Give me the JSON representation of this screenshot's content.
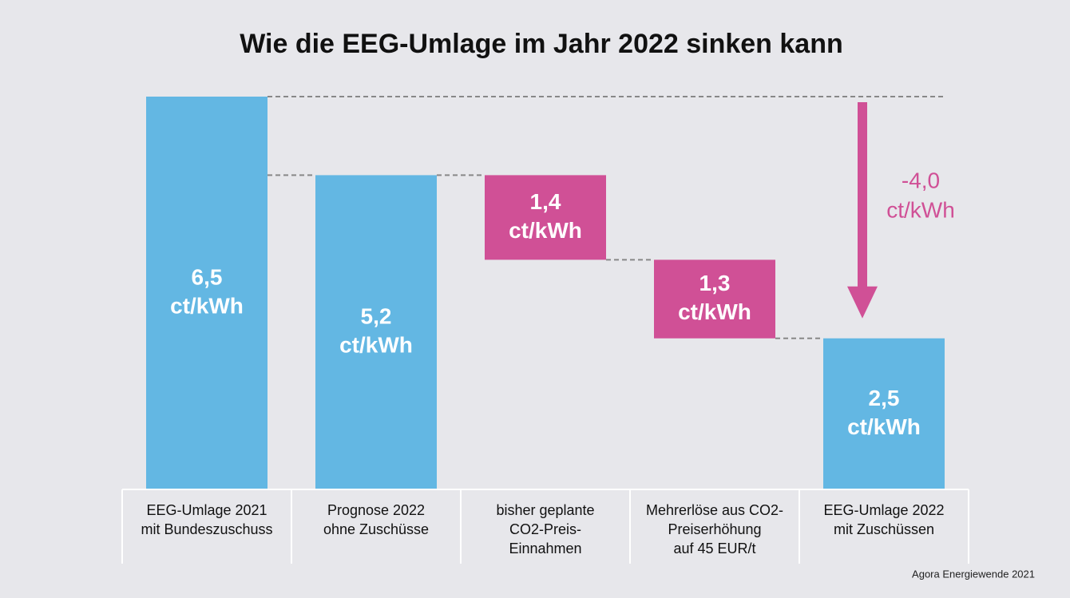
{
  "chart_data": {
    "type": "waterfall",
    "title": "Wie die EEG-Umlage im Jahr 2022 sinken kann",
    "categories": [
      [
        "EEG-Umlage 2021",
        "mit Bundeszuschuss"
      ],
      [
        "Prognose 2022",
        "ohne Zuschüsse"
      ],
      [
        "bisher geplante",
        "CO2-Preis-",
        "Einnahmen"
      ],
      [
        "Mehrerlöse aus CO2-",
        "Preiserhöhung",
        "auf 45 EUR/t"
      ],
      [
        "EEG-Umlage 2022",
        "mit Zuschüssen"
      ]
    ],
    "values": [
      6.5,
      5.2,
      1.4,
      1.3,
      2.5
    ],
    "value_labels": [
      "6,5",
      "5,2",
      "1,4",
      "1,3",
      "2,5"
    ],
    "measure": [
      "total",
      "total",
      "decrease",
      "decrease",
      "total"
    ],
    "unit": "ct/kWh",
    "colors": {
      "total": "#63b7e3",
      "decrease": "#d05096"
    },
    "annotation": {
      "value": -4.0,
      "label": "-4,0",
      "unit": "ct/kWh"
    },
    "source": "Agora Energiewende 2021"
  }
}
